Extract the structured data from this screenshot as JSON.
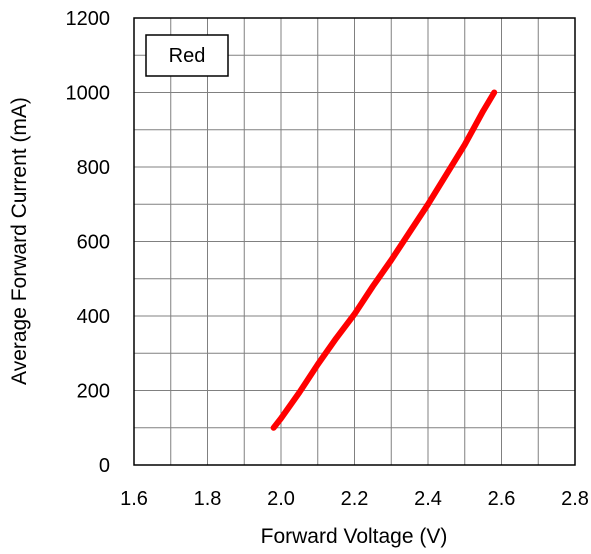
{
  "chart_data": {
    "type": "line",
    "title": "",
    "xlabel": "Forward Voltage (V)",
    "ylabel": "Average Forward Current (mA)",
    "xlim": [
      1.6,
      2.8
    ],
    "ylim": [
      0,
      1200
    ],
    "x_ticks": [
      "1.6",
      "1.8",
      "2.0",
      "2.2",
      "2.4",
      "2.6",
      "2.8"
    ],
    "y_ticks": [
      "0",
      "200",
      "400",
      "600",
      "800",
      "1000",
      "1200"
    ],
    "x_minor_step": 0.1,
    "y_minor_step": 100,
    "grid": true,
    "legend": {
      "placement": "top-left",
      "label": "Red"
    },
    "series": [
      {
        "name": "Red",
        "color": "#ff0000",
        "x": [
          1.98,
          2.0,
          2.05,
          2.1,
          2.15,
          2.2,
          2.25,
          2.3,
          2.35,
          2.4,
          2.45,
          2.5,
          2.55,
          2.58
        ],
        "y": [
          100,
          125,
          195,
          270,
          340,
          405,
          480,
          550,
          625,
          700,
          780,
          860,
          950,
          1000
        ]
      }
    ]
  }
}
